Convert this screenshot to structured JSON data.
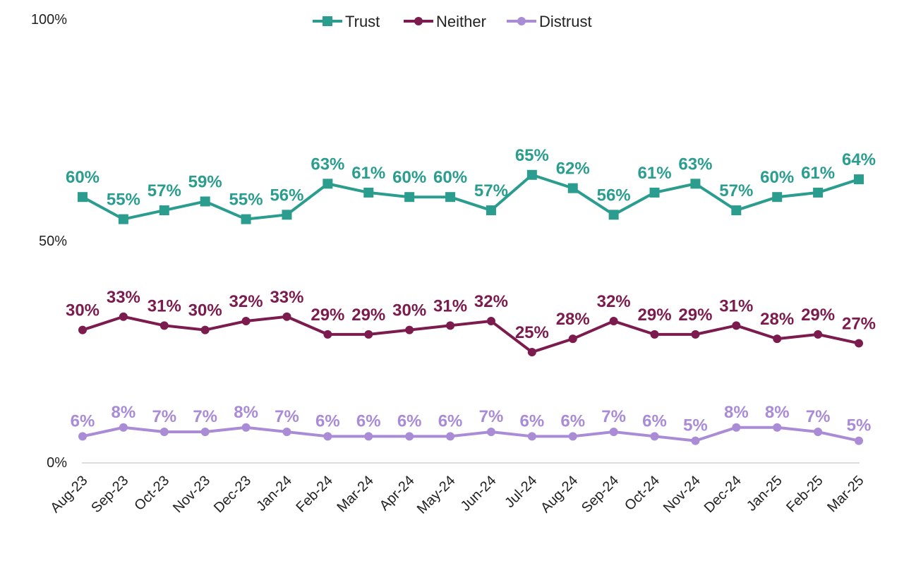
{
  "chart_data": {
    "type": "line",
    "title": "",
    "xlabel": "",
    "ylabel": "",
    "ylim": [
      0,
      100
    ],
    "yticks": [
      {
        "value": 0,
        "label": "0%"
      },
      {
        "value": 50,
        "label": "50%"
      },
      {
        "value": 100,
        "label": "100%"
      }
    ],
    "legend_position": "top-center",
    "grid": false,
    "categories": [
      "Aug-23",
      "Sep-23",
      "Oct-23",
      "Nov-23",
      "Dec-23",
      "Jan-24",
      "Feb-24",
      "Mar-24",
      "Apr-24",
      "May-24",
      "Jun-24",
      "Jul-24",
      "Aug-24",
      "Sep-24",
      "Oct-24",
      "Nov-24",
      "Dec-24",
      "Jan-25",
      "Feb-25",
      "Mar-25"
    ],
    "series": [
      {
        "name": "Trust",
        "color": "#2a9d8f",
        "marker": "square",
        "values": [
          60,
          55,
          57,
          59,
          55,
          56,
          63,
          61,
          60,
          60,
          57,
          65,
          62,
          56,
          61,
          63,
          57,
          60,
          61,
          64
        ],
        "labels": [
          "60%",
          "55%",
          "57%",
          "59%",
          "55%",
          "56%",
          "63%",
          "61%",
          "60%",
          "60%",
          "57%",
          "65%",
          "62%",
          "56%",
          "61%",
          "63%",
          "57%",
          "60%",
          "61%",
          "64%"
        ]
      },
      {
        "name": "Neither",
        "color": "#7b1b4e",
        "marker": "circle",
        "values": [
          30,
          33,
          31,
          30,
          32,
          33,
          29,
          29,
          30,
          31,
          32,
          25,
          28,
          32,
          29,
          29,
          31,
          28,
          29,
          27
        ],
        "labels": [
          "30%",
          "33%",
          "31%",
          "30%",
          "32%",
          "33%",
          "29%",
          "29%",
          "30%",
          "31%",
          "32%",
          "25%",
          "28%",
          "32%",
          "29%",
          "29%",
          "31%",
          "28%",
          "29%",
          "27%"
        ]
      },
      {
        "name": "Distrust",
        "color": "#a98bd6",
        "marker": "circle",
        "values": [
          6,
          8,
          7,
          7,
          8,
          7,
          6,
          6,
          6,
          6,
          7,
          6,
          6,
          7,
          6,
          5,
          8,
          8,
          7,
          5
        ],
        "labels": [
          "6%",
          "8%",
          "7%",
          "7%",
          "8%",
          "7%",
          "6%",
          "6%",
          "6%",
          "6%",
          "7%",
          "6%",
          "6%",
          "7%",
          "6%",
          "5%",
          "8%",
          "8%",
          "7%",
          "5%"
        ]
      }
    ]
  }
}
